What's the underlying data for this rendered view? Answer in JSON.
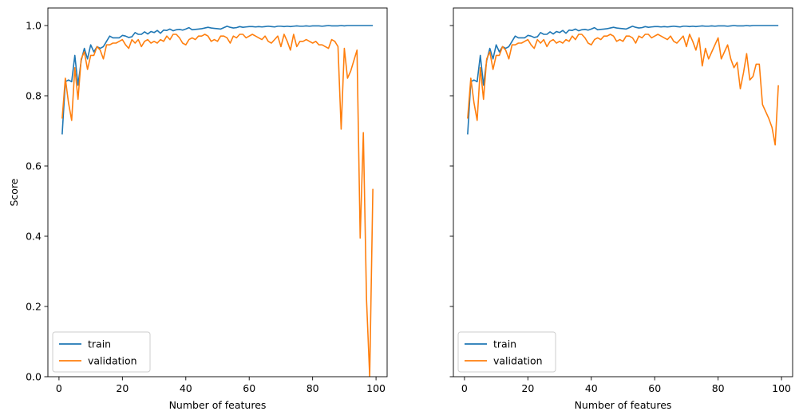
{
  "chart_data": [
    {
      "type": "line",
      "title": "",
      "xlabel": "Number of features",
      "ylabel": "Score",
      "xlim": [
        -3.5,
        103.5
      ],
      "ylim": [
        0.0,
        1.05
      ],
      "xticks": [
        0,
        20,
        40,
        60,
        80,
        100
      ],
      "yticks": [
        0.0,
        0.2,
        0.4,
        0.6,
        0.8,
        1.0
      ],
      "xtick_labels": [
        "0",
        "20",
        "40",
        "60",
        "80",
        "100"
      ],
      "ytick_labels": [
        "0.0",
        "0.2",
        "0.4",
        "0.6",
        "0.8",
        "1.0"
      ],
      "grid": false,
      "legend_position": "lower-left",
      "series": [
        {
          "name": "train",
          "color": "#1f77b4",
          "x": [
            1,
            2,
            3,
            4,
            5,
            6,
            7,
            8,
            9,
            10,
            11,
            12,
            13,
            14,
            15,
            16,
            17,
            18,
            19,
            20,
            21,
            22,
            23,
            24,
            25,
            26,
            27,
            28,
            29,
            30,
            31,
            32,
            33,
            34,
            35,
            36,
            37,
            38,
            39,
            40,
            41,
            42,
            43,
            44,
            45,
            46,
            47,
            48,
            49,
            50,
            51,
            52,
            53,
            54,
            55,
            56,
            57,
            58,
            59,
            60,
            61,
            62,
            63,
            64,
            65,
            66,
            67,
            68,
            69,
            70,
            71,
            72,
            73,
            74,
            75,
            76,
            77,
            78,
            79,
            80,
            81,
            82,
            83,
            84,
            85,
            86,
            87,
            88,
            89,
            90,
            91,
            92,
            93,
            94,
            95,
            96,
            97,
            98,
            99
          ],
          "values": [
            0.69,
            0.84,
            0.845,
            0.84,
            0.915,
            0.83,
            0.9,
            0.935,
            0.905,
            0.945,
            0.925,
            0.94,
            0.935,
            0.94,
            0.955,
            0.97,
            0.965,
            0.965,
            0.965,
            0.972,
            0.97,
            0.966,
            0.968,
            0.98,
            0.975,
            0.975,
            0.982,
            0.976,
            0.983,
            0.98,
            0.986,
            0.978,
            0.987,
            0.986,
            0.99,
            0.985,
            0.988,
            0.989,
            0.987,
            0.99,
            0.994,
            0.988,
            0.989,
            0.99,
            0.991,
            0.993,
            0.995,
            0.993,
            0.992,
            0.991,
            0.99,
            0.994,
            0.998,
            0.995,
            0.993,
            0.994,
            0.997,
            0.995,
            0.996,
            0.997,
            0.997,
            0.996,
            0.997,
            0.996,
            0.997,
            0.998,
            0.997,
            0.996,
            0.998,
            0.998,
            0.997,
            0.998,
            0.997,
            0.998,
            0.999,
            0.998,
            0.998,
            0.999,
            0.998,
            0.999,
            0.999,
            0.999,
            0.998,
            0.999,
            1.0,
            0.999,
            0.999,
            0.999,
            1.0,
            0.999,
            1.0,
            1.0,
            1.0,
            1.0,
            1.0,
            1.0,
            1.0,
            1.0,
            1.0
          ]
        },
        {
          "name": "validation",
          "color": "#ff7f0e",
          "x": [
            1,
            2,
            3,
            4,
            5,
            6,
            7,
            8,
            9,
            10,
            11,
            12,
            13,
            14,
            15,
            16,
            17,
            18,
            19,
            20,
            21,
            22,
            23,
            24,
            25,
            26,
            27,
            28,
            29,
            30,
            31,
            32,
            33,
            34,
            35,
            36,
            37,
            38,
            39,
            40,
            41,
            42,
            43,
            44,
            45,
            46,
            47,
            48,
            49,
            50,
            51,
            52,
            53,
            54,
            55,
            56,
            57,
            58,
            59,
            60,
            61,
            62,
            63,
            64,
            65,
            66,
            67,
            68,
            69,
            70,
            71,
            72,
            73,
            74,
            75,
            76,
            77,
            78,
            79,
            80,
            81,
            82,
            83,
            84,
            85,
            86,
            87,
            88,
            89,
            90,
            91,
            92,
            93,
            94,
            95,
            96,
            97,
            98,
            99
          ],
          "values": [
            0.735,
            0.85,
            0.78,
            0.73,
            0.88,
            0.79,
            0.905,
            0.925,
            0.875,
            0.915,
            0.915,
            0.94,
            0.93,
            0.905,
            0.945,
            0.945,
            0.95,
            0.95,
            0.955,
            0.96,
            0.945,
            0.935,
            0.96,
            0.95,
            0.96,
            0.94,
            0.955,
            0.96,
            0.95,
            0.955,
            0.95,
            0.96,
            0.955,
            0.97,
            0.96,
            0.975,
            0.975,
            0.965,
            0.95,
            0.945,
            0.96,
            0.965,
            0.96,
            0.97,
            0.97,
            0.975,
            0.97,
            0.955,
            0.96,
            0.955,
            0.97,
            0.97,
            0.965,
            0.95,
            0.97,
            0.965,
            0.975,
            0.975,
            0.965,
            0.97,
            0.975,
            0.97,
            0.965,
            0.96,
            0.97,
            0.955,
            0.95,
            0.96,
            0.97,
            0.94,
            0.975,
            0.955,
            0.93,
            0.975,
            0.94,
            0.955,
            0.955,
            0.96,
            0.955,
            0.95,
            0.955,
            0.945,
            0.945,
            0.94,
            0.935,
            0.96,
            0.955,
            0.94,
            0.705,
            0.935,
            0.85,
            0.87,
            0.9,
            0.93,
            0.395,
            0.695,
            0.22,
            0.0,
            0.535
          ]
        }
      ]
    },
    {
      "type": "line",
      "title": "",
      "xlabel": "Number of features",
      "ylabel": "",
      "xlim": [
        -3.5,
        103.5
      ],
      "ylim": [
        0.0,
        1.05
      ],
      "xticks": [
        0,
        20,
        40,
        60,
        80,
        100
      ],
      "yticks": [
        0.0,
        0.2,
        0.4,
        0.6,
        0.8,
        1.0
      ],
      "xtick_labels": [
        "0",
        "20",
        "40",
        "60",
        "80",
        "100"
      ],
      "ytick_labels": [],
      "grid": false,
      "legend_position": "lower-left",
      "series": [
        {
          "name": "train",
          "color": "#1f77b4",
          "x": [
            1,
            2,
            3,
            4,
            5,
            6,
            7,
            8,
            9,
            10,
            11,
            12,
            13,
            14,
            15,
            16,
            17,
            18,
            19,
            20,
            21,
            22,
            23,
            24,
            25,
            26,
            27,
            28,
            29,
            30,
            31,
            32,
            33,
            34,
            35,
            36,
            37,
            38,
            39,
            40,
            41,
            42,
            43,
            44,
            45,
            46,
            47,
            48,
            49,
            50,
            51,
            52,
            53,
            54,
            55,
            56,
            57,
            58,
            59,
            60,
            61,
            62,
            63,
            64,
            65,
            66,
            67,
            68,
            69,
            70,
            71,
            72,
            73,
            74,
            75,
            76,
            77,
            78,
            79,
            80,
            81,
            82,
            83,
            84,
            85,
            86,
            87,
            88,
            89,
            90,
            91,
            92,
            93,
            94,
            95,
            96,
            97,
            98,
            99
          ],
          "values": [
            0.69,
            0.84,
            0.845,
            0.84,
            0.915,
            0.83,
            0.9,
            0.935,
            0.905,
            0.945,
            0.925,
            0.94,
            0.935,
            0.94,
            0.955,
            0.97,
            0.965,
            0.965,
            0.965,
            0.972,
            0.97,
            0.966,
            0.968,
            0.98,
            0.975,
            0.975,
            0.982,
            0.976,
            0.983,
            0.98,
            0.986,
            0.978,
            0.987,
            0.986,
            0.99,
            0.985,
            0.988,
            0.989,
            0.987,
            0.99,
            0.994,
            0.988,
            0.989,
            0.99,
            0.991,
            0.993,
            0.995,
            0.993,
            0.992,
            0.991,
            0.99,
            0.994,
            0.998,
            0.995,
            0.993,
            0.994,
            0.997,
            0.995,
            0.996,
            0.997,
            0.997,
            0.996,
            0.997,
            0.996,
            0.997,
            0.998,
            0.997,
            0.996,
            0.998,
            0.998,
            0.997,
            0.998,
            0.997,
            0.998,
            0.999,
            0.998,
            0.998,
            0.999,
            0.998,
            0.999,
            0.999,
            0.999,
            0.998,
            0.999,
            1.0,
            0.999,
            0.999,
            0.999,
            1.0,
            0.999,
            1.0,
            1.0,
            1.0,
            1.0,
            1.0,
            1.0,
            1.0,
            1.0,
            1.0
          ]
        },
        {
          "name": "validation",
          "color": "#ff7f0e",
          "x": [
            1,
            2,
            3,
            4,
            5,
            6,
            7,
            8,
            9,
            10,
            11,
            12,
            13,
            14,
            15,
            16,
            17,
            18,
            19,
            20,
            21,
            22,
            23,
            24,
            25,
            26,
            27,
            28,
            29,
            30,
            31,
            32,
            33,
            34,
            35,
            36,
            37,
            38,
            39,
            40,
            41,
            42,
            43,
            44,
            45,
            46,
            47,
            48,
            49,
            50,
            51,
            52,
            53,
            54,
            55,
            56,
            57,
            58,
            59,
            60,
            61,
            62,
            63,
            64,
            65,
            66,
            67,
            68,
            69,
            70,
            71,
            72,
            73,
            74,
            75,
            76,
            77,
            78,
            79,
            80,
            81,
            82,
            83,
            84,
            85,
            86,
            87,
            88,
            89,
            90,
            91,
            92,
            93,
            94,
            95,
            96,
            97,
            98,
            99
          ],
          "values": [
            0.735,
            0.85,
            0.78,
            0.73,
            0.88,
            0.79,
            0.905,
            0.925,
            0.875,
            0.915,
            0.915,
            0.94,
            0.93,
            0.905,
            0.945,
            0.945,
            0.95,
            0.95,
            0.955,
            0.96,
            0.945,
            0.935,
            0.96,
            0.95,
            0.96,
            0.94,
            0.955,
            0.96,
            0.95,
            0.955,
            0.95,
            0.96,
            0.955,
            0.97,
            0.96,
            0.975,
            0.975,
            0.965,
            0.95,
            0.945,
            0.96,
            0.965,
            0.96,
            0.97,
            0.97,
            0.975,
            0.97,
            0.955,
            0.96,
            0.955,
            0.97,
            0.97,
            0.965,
            0.95,
            0.97,
            0.965,
            0.975,
            0.975,
            0.965,
            0.97,
            0.975,
            0.97,
            0.965,
            0.96,
            0.97,
            0.955,
            0.95,
            0.96,
            0.97,
            0.94,
            0.975,
            0.955,
            0.93,
            0.965,
            0.885,
            0.935,
            0.905,
            0.925,
            0.945,
            0.965,
            0.905,
            0.925,
            0.945,
            0.905,
            0.88,
            0.895,
            0.82,
            0.865,
            0.92,
            0.845,
            0.855,
            0.89,
            0.89,
            0.775,
            0.755,
            0.735,
            0.71,
            0.66,
            0.83
          ]
        }
      ]
    }
  ]
}
